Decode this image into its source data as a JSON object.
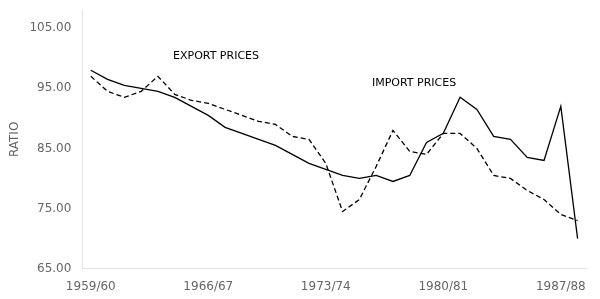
{
  "chart_data": {
    "type": "line",
    "y_label": "RATIO",
    "x": [
      1959,
      1960,
      1961,
      1962,
      1963,
      1964,
      1965,
      1966,
      1967,
      1968,
      1969,
      1970,
      1971,
      1972,
      1973,
      1974,
      1975,
      1976,
      1977,
      1978,
      1979,
      1980,
      1981,
      1982,
      1983,
      1984,
      1985,
      1986,
      1987,
      1988
    ],
    "series": [
      {
        "name": "IMPORT PRICES",
        "color": "#000000",
        "line_style": "solid",
        "values": [
          98.0,
          96.5,
          95.5,
          95.0,
          94.5,
          93.5,
          92.0,
          90.5,
          88.5,
          87.5,
          86.5,
          85.5,
          84.0,
          82.5,
          81.5,
          80.5,
          80.0,
          80.5,
          79.5,
          80.5,
          86.0,
          87.5,
          93.5,
          91.5,
          87.0,
          86.5,
          83.5,
          83.0,
          92.0,
          70.0
        ]
      },
      {
        "name": "EXPORT PRICES",
        "color": "#000000",
        "line_style": "dashed",
        "values": [
          97.0,
          94.5,
          93.5,
          94.5,
          97.0,
          94.0,
          93.0,
          92.5,
          91.5,
          90.5,
          89.5,
          89.0,
          87.0,
          86.5,
          82.5,
          74.5,
          76.5,
          82.0,
          88.0,
          84.5,
          84.0,
          87.5,
          87.5,
          85.0,
          80.5,
          80.0,
          78.0,
          76.5,
          74.0,
          73.0
        ]
      }
    ],
    "xlim": [
      1958.5,
      1988.5
    ],
    "xticks": [
      {
        "value": 1959,
        "label": "1959/60"
      },
      {
        "value": 1966,
        "label": "1966/67"
      },
      {
        "value": 1973,
        "label": "1973/74"
      },
      {
        "value": 1980,
        "label": "1980/81"
      },
      {
        "value": 1987,
        "label": "1987/88"
      }
    ],
    "ylim": [
      65.0,
      108.0
    ],
    "yticks": [
      {
        "value": 65,
        "label": "65.00"
      },
      {
        "value": 75,
        "label": "75.00"
      },
      {
        "value": 85,
        "label": "85.00"
      },
      {
        "value": 95,
        "label": "95.00"
      },
      {
        "value": 105,
        "label": "105.00"
      }
    ],
    "grid": false
  }
}
